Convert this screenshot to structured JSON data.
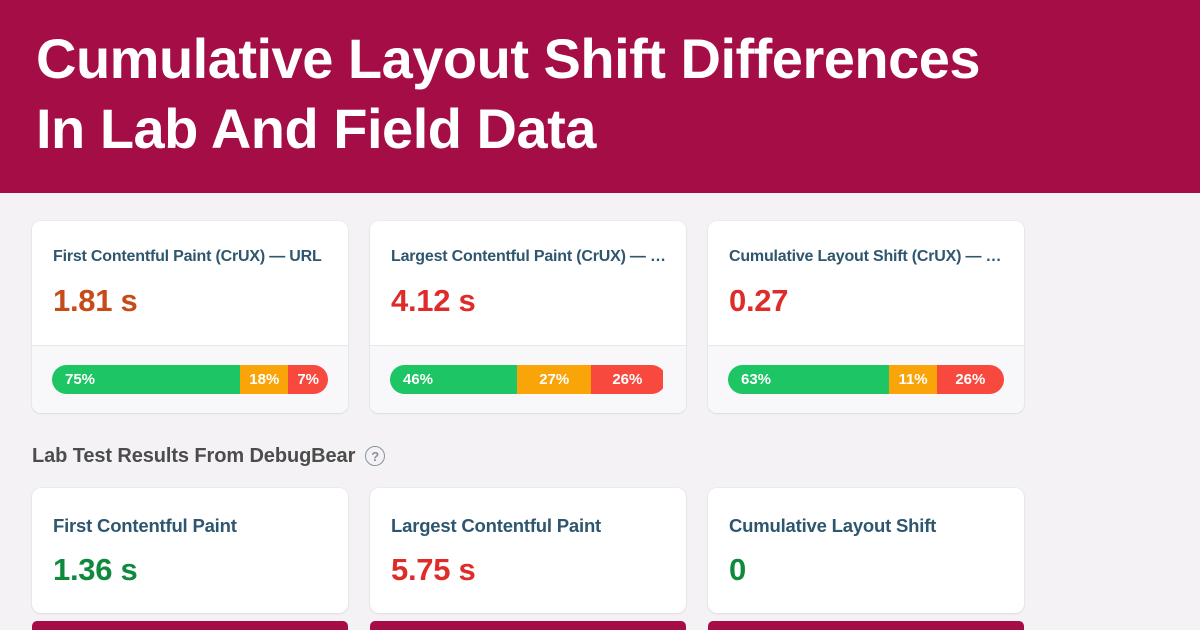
{
  "header": {
    "title_line1": "Cumulative Layout Shift Differences",
    "title_line2": "In Lab And Field Data",
    "background_color": "#A40D45",
    "text_color": "#FFFFFF"
  },
  "colors": {
    "page_background": "#F4F2F5",
    "card_background": "#FFFFFF",
    "card_title": "#2E566E",
    "good_green": "#0F8A3C",
    "warn_orange": "#C74A19",
    "poor_red": "#E02B2B",
    "bar_green": "#1EC564",
    "bar_orange": "#F9A408",
    "bar_red": "#F8493F",
    "section_heading": "#4C4C4C"
  },
  "crux_cards": [
    {
      "title": "First Contentful Paint (CrUX) — URL",
      "value": "1.81 s",
      "value_color": "#C74A19",
      "distribution": [
        {
          "label": "75%",
          "pct": 75,
          "color": "#1EC564"
        },
        {
          "label": "18%",
          "pct": 18,
          "color": "#F9A408"
        },
        {
          "label": "7%",
          "pct": 7,
          "color": "#F8493F"
        }
      ]
    },
    {
      "title": "Largest Contentful Paint (CrUX) — …",
      "value": "4.12 s",
      "value_color": "#E02B2B",
      "distribution": [
        {
          "label": "46%",
          "pct": 46,
          "color": "#1EC564"
        },
        {
          "label": "27%",
          "pct": 27,
          "color": "#F9A408"
        },
        {
          "label": "26%",
          "pct": 26,
          "color": "#F8493F"
        }
      ]
    },
    {
      "title": "Cumulative Layout Shift (CrUX) — …",
      "value": "0.27",
      "value_color": "#E02B2B",
      "distribution": [
        {
          "label": "63%",
          "pct": 63,
          "color": "#1EC564"
        },
        {
          "label": "11%",
          "pct": 11,
          "color": "#F9A408"
        },
        {
          "label": "26%",
          "pct": 26,
          "color": "#F8493F"
        }
      ]
    }
  ],
  "lab_section": {
    "heading": "Lab Test Results From DebugBear",
    "help_icon_glyph": "?"
  },
  "lab_cards": [
    {
      "title": "First Contentful Paint",
      "value": "1.36 s",
      "value_color": "#0F8A3C"
    },
    {
      "title": "Largest Contentful Paint",
      "value": "5.75 s",
      "value_color": "#E02B2B"
    },
    {
      "title": "Cumulative Layout Shift",
      "value": "0",
      "value_color": "#0F8A3C"
    }
  ],
  "cutoff_strip_color": "#A40D45"
}
